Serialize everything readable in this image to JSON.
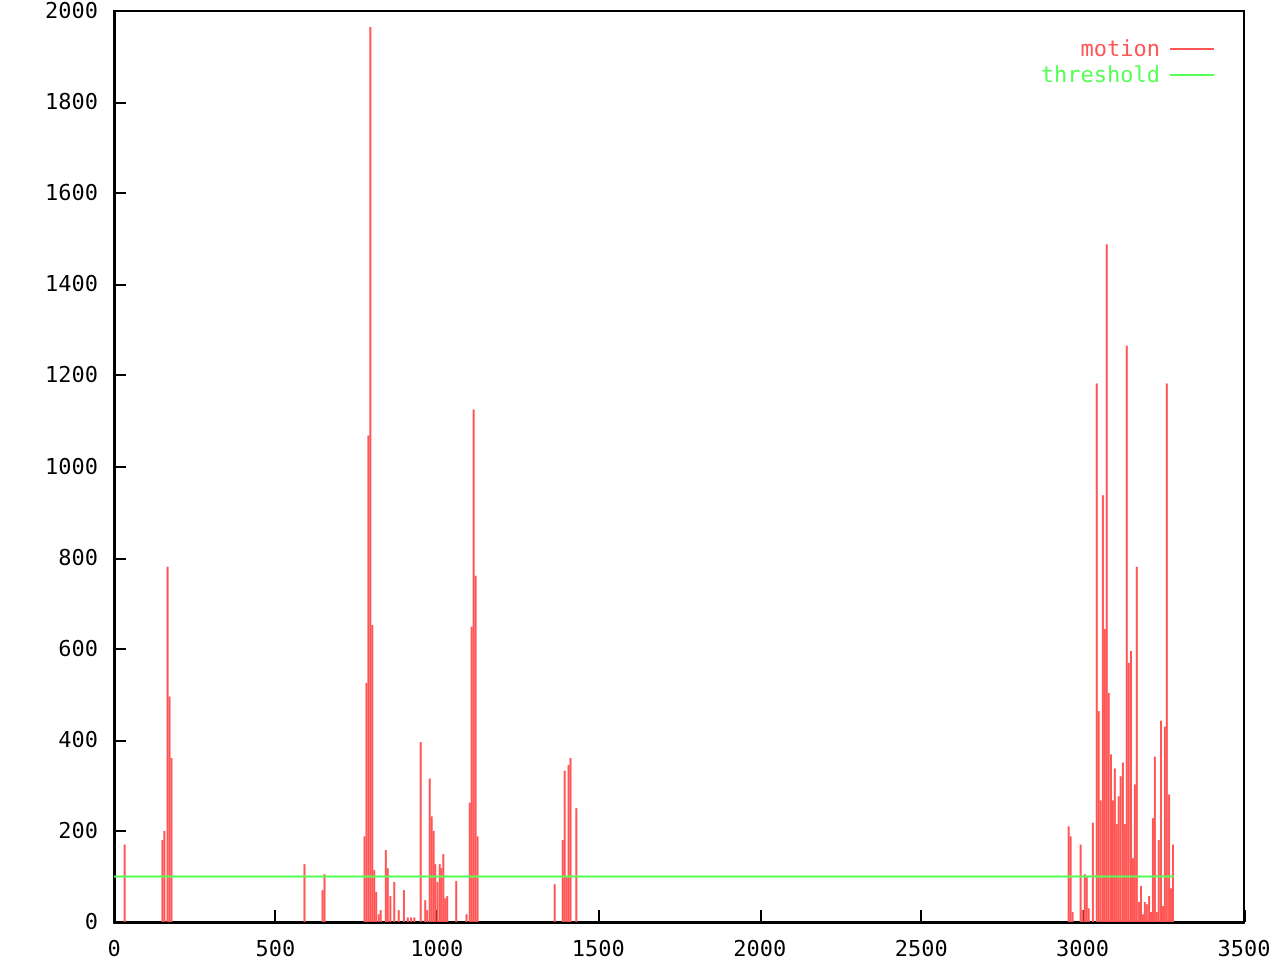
{
  "chart_data": {
    "type": "bar",
    "xlim": [
      0,
      3500
    ],
    "xticks": [
      0,
      500,
      1000,
      1500,
      2000,
      2500,
      3000,
      3500
    ],
    "ylim": [
      0,
      2000
    ],
    "yticks": [
      0,
      200,
      400,
      600,
      800,
      1000,
      1200,
      1400,
      1600,
      1800,
      2000
    ],
    "grid": false,
    "legend": "top right",
    "marker": "none",
    "series": [
      {
        "name": "motion",
        "color": "#ff5555",
        "x": [
          33,
          150,
          156,
          166,
          172,
          178,
          590,
          646,
          652,
          776,
          782,
          788,
          794,
          800,
          806,
          812,
          820,
          826,
          842,
          848,
          856,
          868,
          882,
          898,
          910,
          920,
          930,
          950,
          964,
          970,
          978,
          984,
          990,
          995,
          1002,
          1009,
          1014,
          1020,
          1026,
          1032,
          1060,
          1092,
          1102,
          1108,
          1114,
          1120,
          1126,
          1365,
          1390,
          1396,
          1402,
          1408,
          1414,
          1432,
          2957,
          2963,
          2969,
          2994,
          3000,
          3007,
          3013,
          3019,
          3032,
          3044,
          3050,
          3056,
          3063,
          3069,
          3075,
          3081,
          3088,
          3094,
          3100,
          3106,
          3112,
          3118,
          3125,
          3131,
          3137,
          3143,
          3150,
          3156,
          3162,
          3168,
          3175,
          3181,
          3187,
          3193,
          3199,
          3206,
          3212,
          3218,
          3224,
          3230,
          3236,
          3243,
          3249,
          3255,
          3261,
          3268,
          3274,
          3280
        ],
        "values": [
          170,
          180,
          200,
          780,
          495,
          360,
          127,
          70,
          105,
          188,
          525,
          1068,
          1965,
          652,
          114,
          66,
          17,
          26,
          158,
          118,
          57,
          88,
          26,
          70,
          10,
          10,
          10,
          395,
          48,
          26,
          315,
          232,
          200,
          127,
          88,
          127,
          118,
          149,
          52,
          57,
          90,
          17,
          262,
          648,
          1125,
          760,
          188,
          83,
          180,
          332,
          100,
          345,
          360,
          250,
          210,
          188,
          22,
          170,
          26,
          105,
          100,
          30,
          218,
          1182,
          463,
          267,
          937,
          643,
          1488,
          503,
          368,
          267,
          337,
          215,
          276,
          320,
          350,
          215,
          1265,
          569,
          595,
          140,
          302,
          780,
          44,
          79,
          17,
          44,
          39,
          57,
          22,
          228,
          363,
          22,
          180,
          442,
          35,
          429,
          1182,
          280,
          74,
          170
        ]
      },
      {
        "name": "threshold",
        "type": "line",
        "color": "#55ff55",
        "line_style": "solid",
        "x": [
          0,
          3283
        ],
        "values": [
          100,
          100
        ]
      }
    ]
  }
}
